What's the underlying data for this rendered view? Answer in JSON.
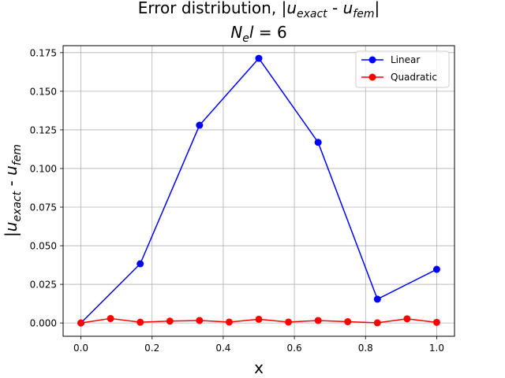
{
  "chart_data": {
    "type": "line",
    "title": {
      "prefix": "Error distribution, |",
      "u1": "u",
      "u1_sub": "exact",
      "mid": " - ",
      "u2": "u",
      "u2_sub": "fem",
      "suffix": "|"
    },
    "subtitle": {
      "n": "N",
      "n_sub": "e",
      "l": "l",
      "rest": " = 6"
    },
    "xlabel": "x",
    "ylabel": {
      "prefix": "|",
      "u1": "u",
      "u1_sub": "exact",
      "mid": " - ",
      "u2": "u",
      "u2_sub": "fem"
    },
    "xlim": [
      -0.05,
      1.05
    ],
    "ylim": [
      -0.0086,
      0.1795
    ],
    "xticks": [
      0.0,
      0.2,
      0.4,
      0.6,
      0.8,
      1.0
    ],
    "xtick_labels": [
      "0.0",
      "0.2",
      "0.4",
      "0.6",
      "0.8",
      "1.0"
    ],
    "yticks": [
      0.0,
      0.025,
      0.05,
      0.075,
      0.1,
      0.125,
      0.15,
      0.175
    ],
    "ytick_labels": [
      "0.000",
      "0.025",
      "0.050",
      "0.075",
      "0.100",
      "0.125",
      "0.150",
      "0.175"
    ],
    "grid": true,
    "legend_position": "top-right",
    "series": [
      {
        "name": "Linear",
        "color": "#0000ff",
        "x": [
          0.0,
          0.1667,
          0.3333,
          0.5,
          0.6667,
          0.8333,
          1.0
        ],
        "y": [
          0.0,
          0.0383,
          0.128,
          0.1713,
          0.1169,
          0.0154,
          0.0347
        ]
      },
      {
        "name": "Quadratic",
        "color": "#ff0000",
        "x": [
          0.0,
          0.0833,
          0.1667,
          0.25,
          0.3333,
          0.4167,
          0.5,
          0.5833,
          0.6667,
          0.75,
          0.8333,
          0.9167,
          1.0
        ],
        "y": [
          0.0,
          0.0029,
          0.0005,
          0.0012,
          0.0016,
          0.0006,
          0.0024,
          0.0006,
          0.0016,
          0.0008,
          0.0001,
          0.0027,
          0.0004
        ]
      }
    ]
  }
}
